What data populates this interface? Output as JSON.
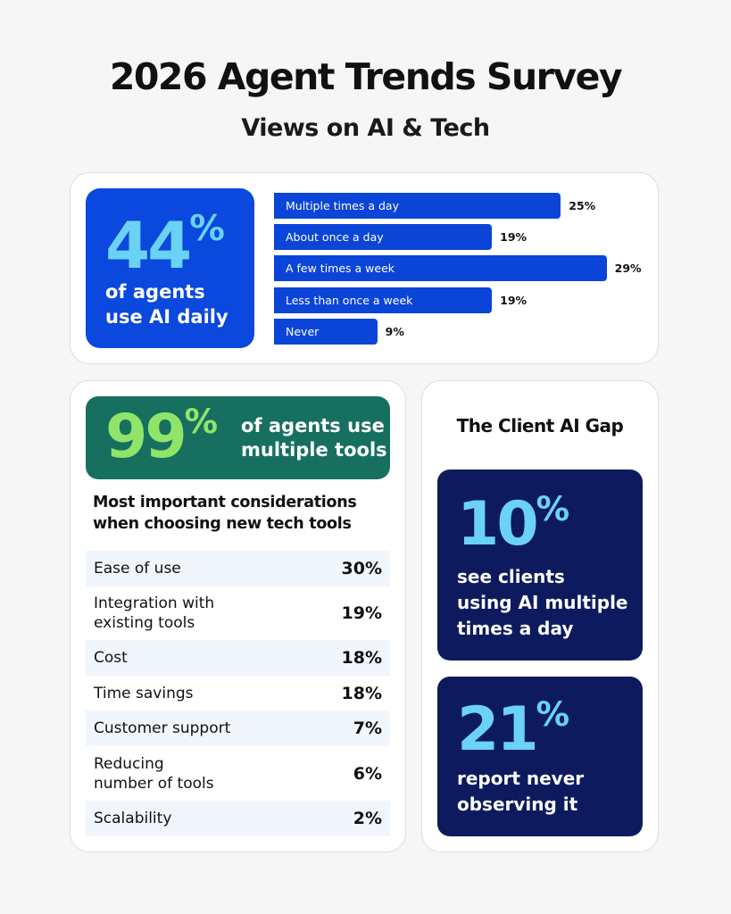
{
  "header": {
    "title": "2026 Agent Trends Survey",
    "subtitle": "Views on AI & Tech"
  },
  "usage": {
    "stat": "44",
    "unit": "%",
    "line1": "of agents",
    "line2": "use AI daily"
  },
  "chart_data": {
    "type": "bar",
    "orientation": "horizontal",
    "categories": [
      "Multiple times a day",
      "About once a day",
      "A few times a week",
      "Less than once a week",
      "Never"
    ],
    "values": [
      25,
      19,
      29,
      19,
      9
    ],
    "labels": [
      "25%",
      "19%",
      "29%",
      "19%",
      "9%"
    ],
    "color": "#0b45d8"
  },
  "tools": {
    "stat": "99",
    "unit": "%",
    "line1": "of agents use",
    "line2": "multiple tools"
  },
  "considerations": {
    "heading_line1": "Most important considerations",
    "heading_line2": "when choosing new tech tools",
    "rows": [
      {
        "label": "Ease of use",
        "value": "30%"
      },
      {
        "label": "Integration with",
        "label2": "existing tools",
        "value": "19%"
      },
      {
        "label": "Cost",
        "value": "18%"
      },
      {
        "label": "Time savings",
        "value": "18%"
      },
      {
        "label": "Customer support",
        "value": "7%"
      },
      {
        "label": "Reducing",
        "label2": "number of tools",
        "value": "6%"
      },
      {
        "label": "Scalability",
        "value": "2%"
      }
    ]
  },
  "gap": {
    "title": "The Client AI Gap",
    "stat1": {
      "value": "10",
      "unit": "%",
      "line1": "see clients",
      "line2": "using AI multiple",
      "line3": "times a day"
    },
    "stat2": {
      "value": "21",
      "unit": "%",
      "line1": "report never",
      "line2": "observing it"
    }
  },
  "colors": {
    "blue": "#0b48dd",
    "cyan": "#6ad3f5",
    "green": "#17705f",
    "lime": "#8ee56a",
    "navy": "#0d1b5e"
  }
}
